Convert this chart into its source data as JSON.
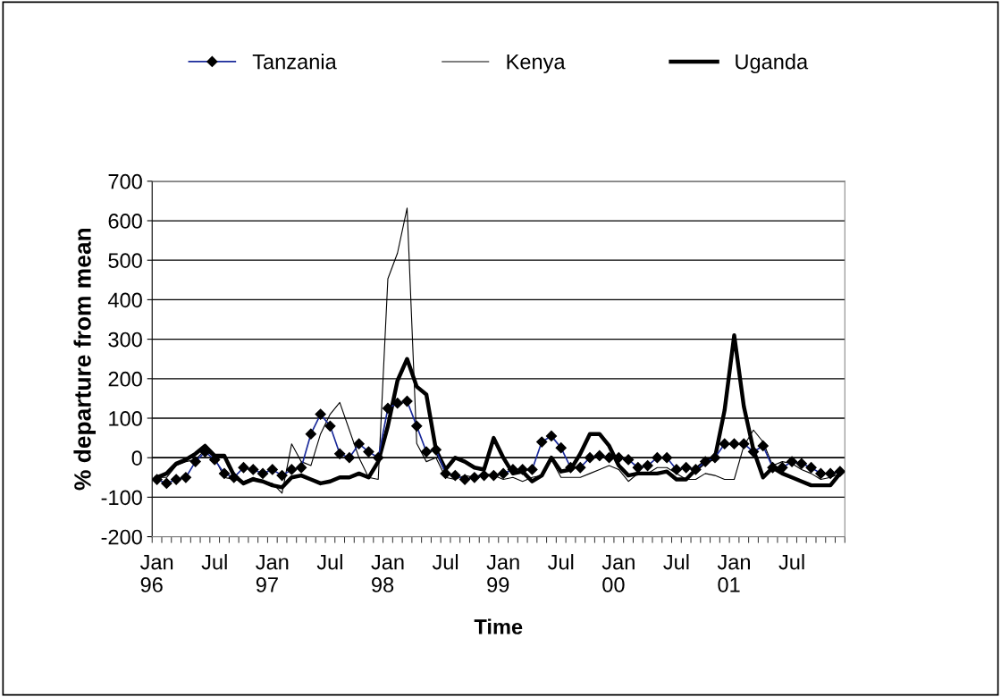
{
  "chart_data": {
    "type": "line",
    "xlabel": "Time",
    "ylabel": "% departure from mean",
    "categories": [
      "Jan\n96",
      null,
      null,
      null,
      null,
      null,
      "Jul",
      null,
      null,
      null,
      null,
      null,
      "Jan\n97",
      null,
      null,
      null,
      null,
      null,
      "Jul",
      null,
      null,
      null,
      null,
      null,
      "Jan\n98",
      null,
      null,
      null,
      null,
      null,
      "Jul",
      null,
      null,
      null,
      null,
      null,
      "Jan\n99",
      null,
      null,
      null,
      null,
      null,
      "Jul",
      null,
      null,
      null,
      null,
      null,
      "Jan\n00",
      null,
      null,
      null,
      null,
      null,
      "Jul",
      null,
      null,
      null,
      null,
      null,
      "Jan\n01",
      null,
      null,
      null,
      null,
      null,
      "Jul",
      null,
      null,
      null,
      null,
      null
    ],
    "series": [
      {
        "name": "Tanzania",
        "color": "#1a2a9a",
        "marker": "diamond",
        "values": [
          -55,
          -65,
          -55,
          -50,
          -10,
          15,
          -5,
          -40,
          -50,
          -25,
          -30,
          -40,
          -30,
          -45,
          -30,
          -25,
          60,
          110,
          80,
          10,
          0,
          35,
          15,
          0,
          125,
          138,
          143,
          80,
          15,
          20,
          -40,
          -45,
          -55,
          -50,
          -45,
          -45,
          -40,
          -30,
          -30,
          -30,
          40,
          55,
          25,
          -25,
          -25,
          0,
          5,
          0,
          0,
          -5,
          -25,
          -20,
          0,
          0,
          -30,
          -25,
          -30,
          -10,
          0,
          35,
          35,
          35,
          15,
          30,
          -25,
          -25,
          -10,
          -15,
          -25,
          -40,
          -40,
          -35
        ]
      },
      {
        "name": "Kenya",
        "color": "#000000",
        "marker": "none",
        "values": [
          -50,
          -50,
          -20,
          -10,
          -5,
          20,
          0,
          -50,
          -55,
          -60,
          -50,
          -60,
          -65,
          -90,
          35,
          -10,
          -20,
          60,
          110,
          140,
          70,
          0,
          -50,
          -55,
          453,
          518,
          632,
          36,
          -10,
          0,
          -50,
          -55,
          -45,
          -50,
          -40,
          -45,
          -55,
          -50,
          -60,
          -50,
          -45,
          -5,
          -50,
          -50,
          -50,
          -40,
          -30,
          -20,
          -30,
          -60,
          -40,
          -40,
          -25,
          -25,
          -40,
          -55,
          -55,
          -40,
          -45,
          -55,
          -55,
          30,
          70,
          40,
          -20,
          -10,
          -15,
          -30,
          -40,
          -55,
          -50,
          -40
        ]
      },
      {
        "name": "Uganda",
        "color": "#000000",
        "marker": "none",
        "values": [
          -50,
          -40,
          -15,
          -5,
          10,
          30,
          5,
          5,
          -45,
          -65,
          -55,
          -60,
          -70,
          -75,
          -50,
          -45,
          -55,
          -65,
          -60,
          -50,
          -50,
          -40,
          -50,
          -10,
          80,
          195,
          250,
          180,
          160,
          20,
          -30,
          0,
          -10,
          -25,
          -30,
          50,
          0,
          -40,
          -35,
          -60,
          -45,
          0,
          -35,
          -30,
          10,
          60,
          60,
          30,
          -20,
          -45,
          -40,
          -40,
          -40,
          -35,
          -55,
          -55,
          -30,
          -10,
          0,
          120,
          310,
          130,
          20,
          -50,
          -25,
          -40,
          -50,
          -60,
          -70,
          -70,
          -70,
          -40
        ]
      }
    ],
    "ylim": [
      -200,
      700
    ],
    "yticks": [
      -200,
      -100,
      0,
      100,
      200,
      300,
      400,
      500,
      600,
      700
    ],
    "grid": "y",
    "legend": "top"
  }
}
